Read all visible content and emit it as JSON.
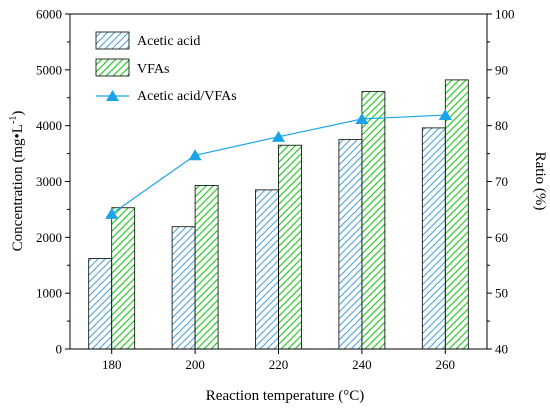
{
  "chart_data": {
    "type": "bar",
    "categories": [
      "180",
      "200",
      "220",
      "240",
      "260"
    ],
    "series": [
      {
        "name": "Acetic acid",
        "values": [
          1620,
          2190,
          2850,
          3750,
          3960
        ],
        "color": "#4a9fd8",
        "axis": "left"
      },
      {
        "name": "VFAs",
        "values": [
          2530,
          2930,
          3650,
          4610,
          4820
        ],
        "color": "#33cc33",
        "axis": "left"
      }
    ],
    "line_series": [
      {
        "name": "Acetic acid/VFAs",
        "values": [
          64.2,
          74.7,
          78.0,
          81.2,
          81.9
        ],
        "color": "#1aa3e8",
        "marker": "triangle",
        "axis": "right"
      }
    ],
    "xlabel": "Reaction temperature (°C)",
    "ylabel": "Concentration (mg•L",
    "ylabel_superscript": "-1",
    "ylabel_close": ")",
    "y2label": "Ratio (%)",
    "ylim": [
      0,
      6000
    ],
    "yticks": [
      0,
      1000,
      2000,
      3000,
      4000,
      5000,
      6000
    ],
    "y2lim": [
      40,
      100
    ],
    "y2ticks": [
      40,
      50,
      60,
      70,
      80,
      90,
      100
    ],
    "legend": {
      "position": "top-left",
      "entries": [
        "Acetic acid",
        "VFAs",
        "Acetic acid/VFAs"
      ]
    },
    "grid": false
  }
}
